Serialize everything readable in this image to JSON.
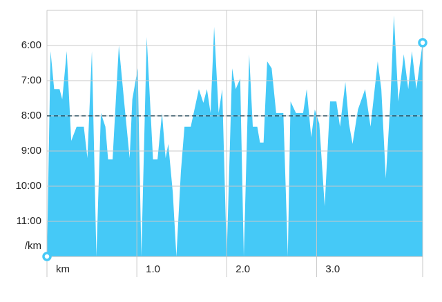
{
  "chart_data": {
    "type": "area",
    "color": "#45c9f7",
    "x": [
      0.0,
      0.04,
      0.08,
      0.14,
      0.17,
      0.22,
      0.27,
      0.33,
      0.41,
      0.45,
      0.5,
      0.55,
      0.6,
      0.65,
      0.68,
      0.73,
      0.8,
      0.86,
      0.92,
      0.95,
      1.01,
      1.05,
      1.11,
      1.18,
      1.23,
      1.28,
      1.32,
      1.35,
      1.4,
      1.44,
      1.49,
      1.53,
      1.6,
      1.69,
      1.74,
      1.78,
      1.82,
      1.86,
      1.91,
      1.95,
      2.0,
      2.06,
      2.1,
      2.15,
      2.19,
      2.25,
      2.29,
      2.34,
      2.37,
      2.41,
      2.45,
      2.5,
      2.55,
      2.63,
      2.68,
      2.71,
      2.77,
      2.85,
      2.89,
      2.94,
      2.98,
      3.03,
      3.09,
      3.15,
      3.22,
      3.26,
      3.32,
      3.36,
      3.4,
      3.46,
      3.54,
      3.6,
      3.68,
      3.72,
      3.77,
      3.82,
      3.86,
      3.91,
      3.97,
      4.02,
      4.06,
      4.11,
      4.18
    ],
    "values": [
      12.0,
      6.16,
      7.24,
      7.24,
      7.53,
      6.16,
      8.71,
      8.31,
      8.31,
      9.2,
      6.16,
      12.0,
      7.92,
      8.31,
      9.24,
      9.24,
      6.0,
      7.63,
      9.2,
      7.53,
      6.65,
      12.0,
      5.76,
      9.24,
      9.24,
      7.92,
      9.2,
      8.8,
      10.18,
      12.0,
      9.59,
      8.31,
      8.31,
      7.24,
      7.63,
      7.24,
      7.92,
      5.47,
      7.92,
      7.24,
      12.0,
      6.65,
      7.24,
      6.94,
      12.0,
      6.25,
      8.31,
      8.31,
      8.76,
      8.76,
      6.45,
      6.65,
      7.92,
      7.92,
      12.0,
      7.59,
      7.92,
      7.92,
      7.24,
      8.61,
      7.82,
      8.22,
      10.57,
      7.59,
      7.59,
      8.31,
      7.04,
      8.22,
      8.8,
      7.82,
      7.24,
      8.31,
      6.45,
      7.24,
      9.78,
      7.63,
      5.14,
      7.59,
      6.25,
      7.24,
      6.16,
      7.24,
      5.92
    ],
    "average": 8,
    "ylim": [
      12,
      5
    ],
    "yticks": [
      {
        "value": 6,
        "label": "6:00"
      },
      {
        "value": 7,
        "label": "7:00"
      },
      {
        "value": 8,
        "label": "8:00"
      },
      {
        "value": 9,
        "label": "9:00"
      },
      {
        "value": 10,
        "label": "10:00"
      },
      {
        "value": 11,
        "label": "11:00"
      }
    ],
    "y_unit": "/km",
    "xlim": [
      0,
      4.18
    ],
    "xticks": [
      {
        "value": 0,
        "label": "km"
      },
      {
        "value": 1,
        "label": "1.0"
      },
      {
        "value": 2,
        "label": "2.0"
      },
      {
        "value": 3,
        "label": "3.0"
      }
    ],
    "grid": true
  }
}
